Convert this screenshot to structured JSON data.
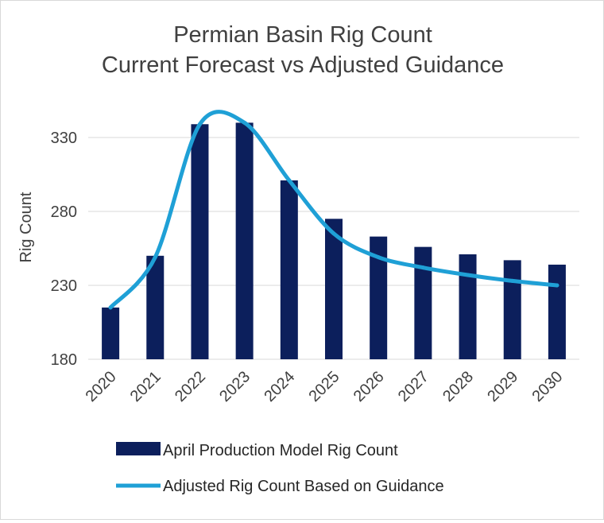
{
  "chart_data": {
    "type": "bar",
    "title": [
      "Permian Basin Rig Count",
      "Current Forecast vs Adjusted Guidance"
    ],
    "xlabel": "",
    "ylabel": "Rig Count",
    "categories": [
      "2020",
      "2021",
      "2022",
      "2023",
      "2024",
      "2025",
      "2026",
      "2027",
      "2028",
      "2029",
      "2030"
    ],
    "yticks": [
      "180",
      "230",
      "280",
      "330"
    ],
    "ylim": [
      180,
      350
    ],
    "grid": true,
    "legend_position": "bottom",
    "series": [
      {
        "name": "April Production Model Rig Count",
        "type": "bar",
        "color": "#0c1f5c",
        "values": [
          215,
          250,
          339,
          340,
          301,
          275,
          263,
          256,
          251,
          247,
          244
        ]
      },
      {
        "name": "Adjusted Rig Count Based on Guidance",
        "type": "line",
        "color": "#1fa0d6",
        "values": [
          215,
          249,
          339,
          340,
          301,
          265,
          249,
          242,
          237,
          233,
          230
        ]
      }
    ]
  }
}
